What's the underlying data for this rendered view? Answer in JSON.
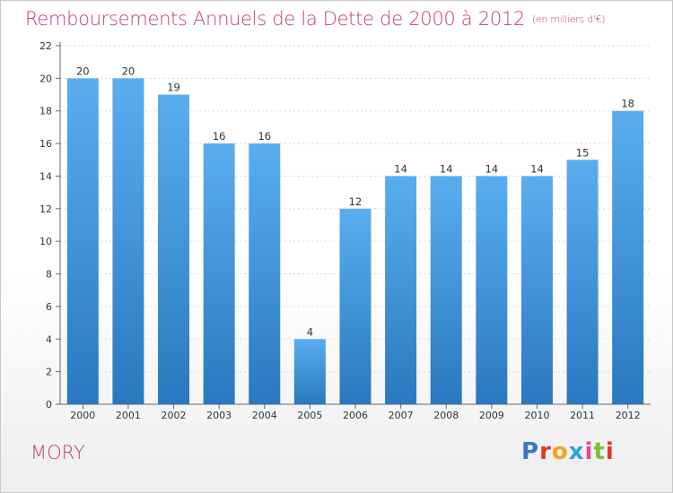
{
  "header": {
    "title": "Remboursements Annuels de la Dette de 2000 à 2012",
    "subtitle": "(en milliers d'€)"
  },
  "footer": {
    "commune": "MORY",
    "logo_text": "Proxiti",
    "logo_colors": [
      "#3a78c7",
      "#e5342a",
      "#f4a21a",
      "#2da3dd",
      "#e84a90",
      "#7bbf3a",
      "#e5342a"
    ]
  },
  "chart_data": {
    "type": "bar",
    "categories": [
      "2000",
      "2001",
      "2002",
      "2003",
      "2004",
      "2005",
      "2006",
      "2007",
      "2008",
      "2009",
      "2010",
      "2011",
      "2012"
    ],
    "values": [
      20,
      20,
      19,
      16,
      16,
      4,
      12,
      14,
      14,
      14,
      14,
      15,
      18
    ],
    "ylim": [
      0,
      22
    ],
    "yticks": [
      0,
      2,
      4,
      6,
      8,
      10,
      12,
      14,
      16,
      18,
      20,
      22
    ],
    "grid": true,
    "legend": "none",
    "bar_color_top": "#5aaef0",
    "bar_color_bottom": "#2a78bf"
  }
}
